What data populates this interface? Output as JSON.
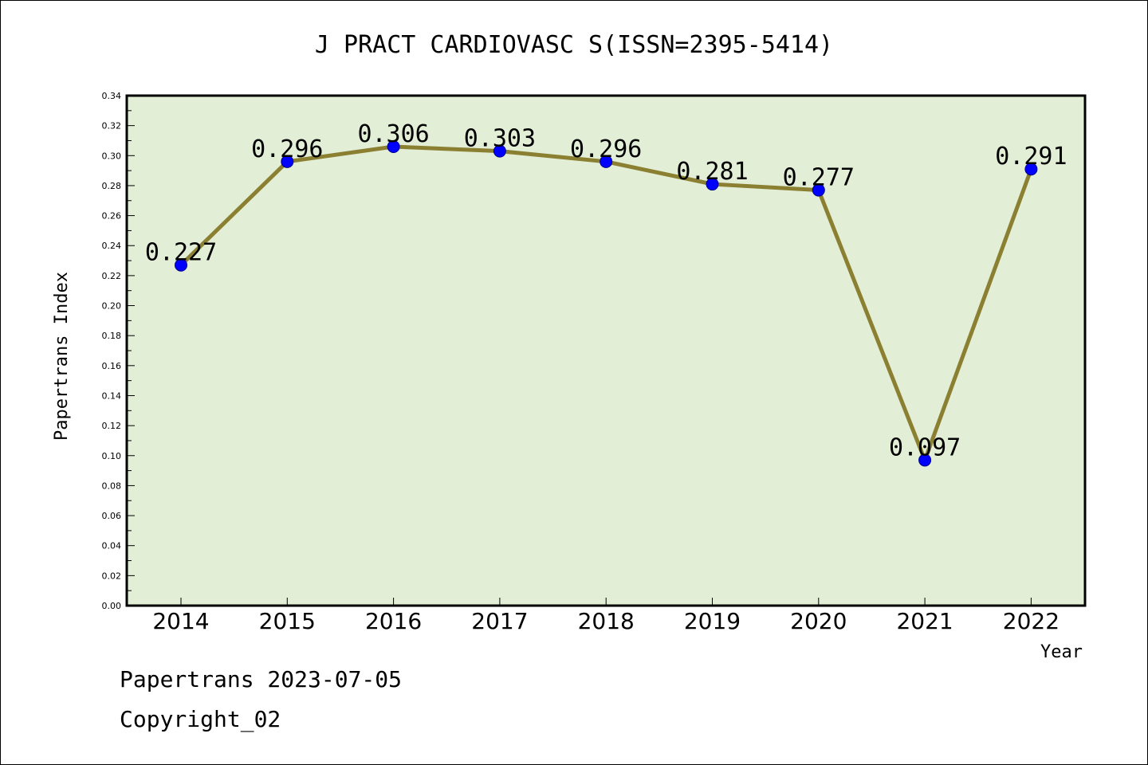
{
  "chart_data": {
    "type": "line",
    "title": "J PRACT CARDIOVASC S(ISSN=2395-5414)",
    "xlabel": "Year",
    "ylabel": "Papertrans Index",
    "categories": [
      "2014",
      "2015",
      "2016",
      "2017",
      "2018",
      "2019",
      "2020",
      "2021",
      "2022"
    ],
    "values": [
      0.227,
      0.296,
      0.306,
      0.303,
      0.296,
      0.281,
      0.277,
      0.097,
      0.291
    ],
    "data_labels": [
      "0.227",
      "0.296",
      "0.306",
      "0.303",
      "0.296",
      "0.281",
      "0.277",
      "0.097",
      "0.291"
    ],
    "ylim": [
      0,
      0.34
    ],
    "yticks": [
      "0.00",
      "0.02",
      "0.04",
      "0.06",
      "0.08",
      "0.10",
      "0.12",
      "0.14",
      "0.16",
      "0.18",
      "0.20",
      "0.22",
      "0.24",
      "0.26",
      "0.28",
      "0.30",
      "0.32",
      "0.34"
    ],
    "grid": false,
    "colors": {
      "plot_background": "#e2efd6",
      "line": "#8b8032",
      "marker": "#0000ff"
    }
  },
  "footer": {
    "date_line": "Papertrans 2023-07-05",
    "copyright_line": "Copyright_02"
  }
}
